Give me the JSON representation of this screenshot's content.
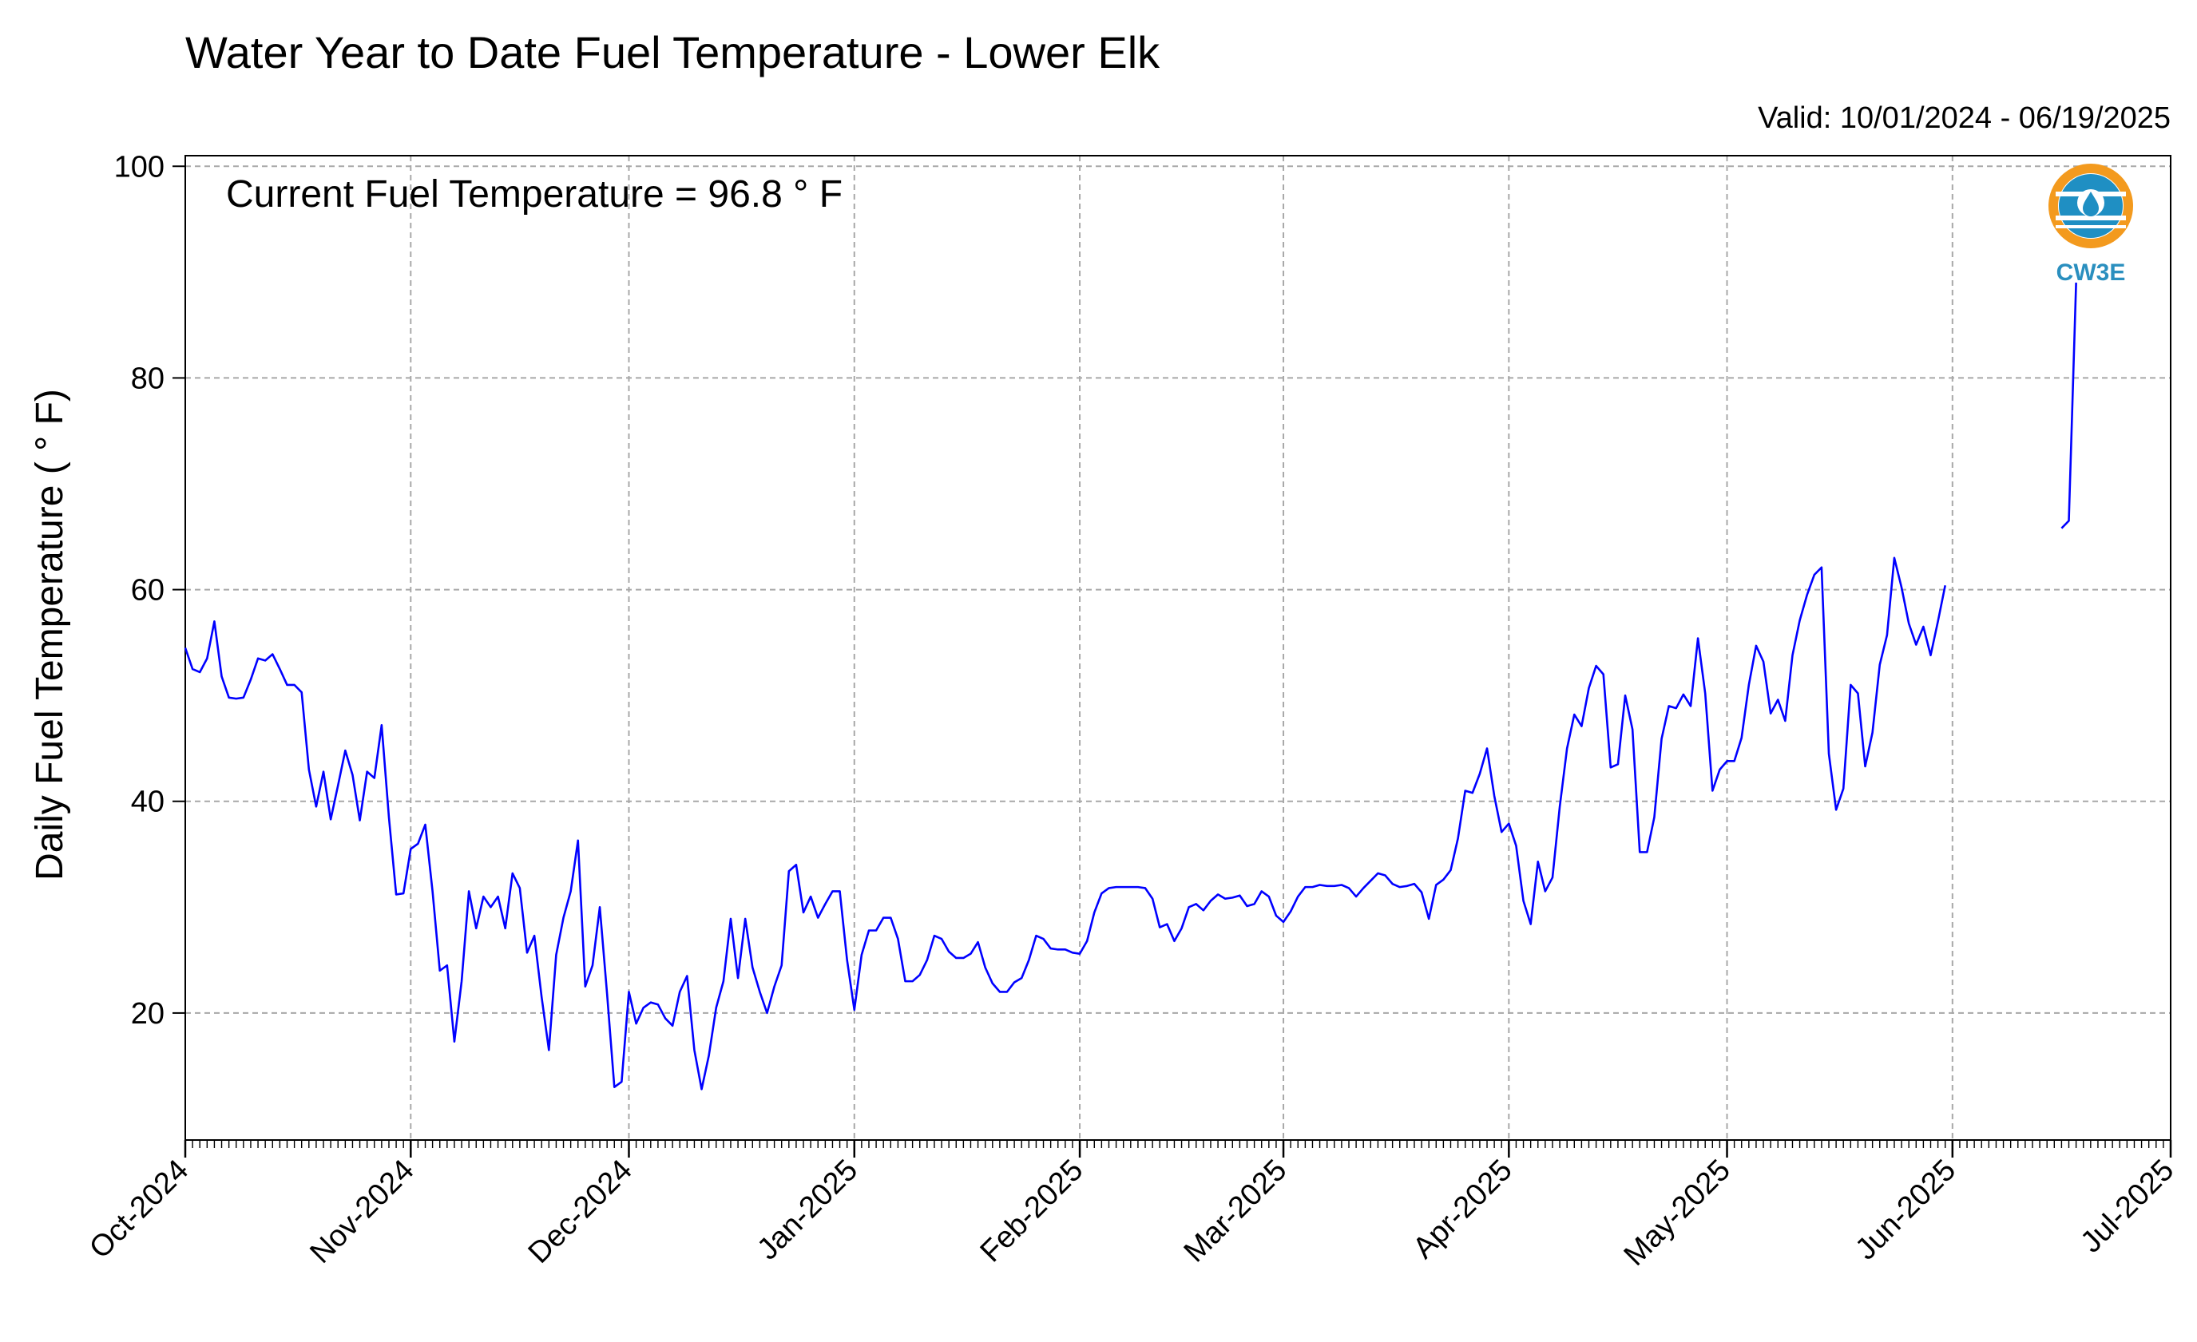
{
  "chart_data": {
    "type": "line",
    "title": "Water Year to Date Fuel Temperature - Lower Elk",
    "valid_text": "Valid: 10/01/2024 - 06/19/2025",
    "annotation": "Current Fuel Temperature = 96.8  ° F",
    "ylabel": "Daily Fuel Temperature ( ° F)",
    "xlabel": "",
    "ylim": [
      8,
      101
    ],
    "yticks": [
      20,
      40,
      60,
      80,
      100
    ],
    "ytick_labels": [
      "20",
      "40",
      "60",
      "80",
      "100"
    ],
    "xlim": [
      "2024-10-01",
      "2025-07-01"
    ],
    "xtick_labels": [
      "Oct-2024",
      "Nov-2024",
      "Dec-2024",
      "Jan-2025",
      "Feb-2025",
      "Mar-2025",
      "Apr-2025",
      "May-2025",
      "Jun-2025",
      "Jul-2025"
    ],
    "xtick_dates": [
      "2024-10-01",
      "2024-11-01",
      "2024-12-01",
      "2025-01-01",
      "2025-02-01",
      "2025-03-01",
      "2025-04-01",
      "2025-05-01",
      "2025-06-01",
      "2025-07-01"
    ],
    "grid": true,
    "line_color": "#0000ff",
    "series": [
      {
        "x_start": "2024-10-01",
        "values": [
          54.5,
          52.5,
          52.2,
          53.5,
          57.0,
          51.8,
          49.8,
          49.7,
          49.8,
          51.5,
          53.5,
          53.3,
          53.9,
          52.5,
          51.0,
          51.0,
          50.3,
          43.0,
          39.5,
          42.8,
          38.3,
          41.5,
          44.8,
          42.5,
          38.2,
          42.8,
          42.2,
          47.2,
          38.5,
          31.2,
          31.3,
          35.5,
          36.0,
          37.8,
          31.5,
          24.0,
          24.5,
          17.3,
          23.0,
          31.5,
          28.0,
          31.0,
          30.0,
          31.0,
          28.0,
          33.2,
          31.8,
          25.7,
          27.3,
          21.5,
          16.5,
          25.5,
          29.0,
          31.5,
          36.3,
          22.5,
          24.5,
          30.0,
          21.8,
          13.0,
          13.5,
          22.0,
          19.0,
          20.5,
          21.0,
          20.8,
          19.5,
          18.8,
          22.0,
          23.5,
          16.5,
          12.8,
          16.0,
          20.5,
          23.0,
          28.9,
          23.3,
          28.9,
          24.3,
          22.0,
          20.0,
          22.5,
          24.5,
          33.4,
          34.0,
          29.5,
          31.0,
          29.0,
          30.3,
          31.5,
          31.5,
          25.0,
          20.3,
          25.5,
          27.8,
          27.8,
          29.0,
          29.0,
          27.0,
          23.0,
          23.0,
          23.6,
          25.0,
          27.3,
          27.0,
          25.8,
          25.2,
          25.2,
          25.6,
          26.7,
          24.3,
          22.8,
          22.0,
          22.0,
          22.9,
          23.3,
          25.0,
          27.3,
          27.0,
          26.1,
          26.0,
          26.0,
          25.7,
          25.6,
          26.8,
          29.5,
          31.3,
          31.8,
          31.9,
          31.9,
          31.9,
          31.9,
          31.8,
          30.8,
          28.1,
          28.4,
          26.8,
          28.0,
          30.0,
          30.3,
          29.7,
          30.6,
          31.2,
          30.8,
          30.9,
          31.1,
          30.1,
          30.3,
          31.5,
          31.0,
          29.2,
          28.6,
          29.6,
          31.0,
          31.9,
          31.9,
          32.1,
          32.0,
          32.0,
          32.1,
          31.8,
          31.0,
          31.8,
          32.5,
          33.2,
          33.0,
          32.2,
          31.9,
          32.0,
          32.2,
          31.4,
          28.9,
          32.1,
          32.6,
          33.5,
          36.5,
          41.0,
          40.8,
          42.6,
          45.0,
          40.5,
          37.1,
          37.9,
          35.8,
          30.6,
          28.4,
          34.3,
          31.5,
          32.8,
          39.5,
          45.0,
          48.2,
          47.1,
          50.7,
          52.8,
          52.0,
          43.2,
          43.5,
          50.0,
          46.8,
          35.2,
          35.2,
          38.5,
          45.9,
          49.0,
          48.8,
          50.1,
          49.0,
          55.4,
          50.2,
          41.0,
          43.0,
          43.8,
          43.8,
          46.0,
          51.0,
          54.7,
          53.2,
          48.3,
          49.6,
          47.6,
          53.8,
          57.1,
          59.5,
          61.4,
          62.1,
          44.5,
          39.2,
          41.2,
          51.0,
          50.2,
          43.3,
          46.5,
          52.9,
          55.7,
          63.0,
          60.2,
          56.8,
          54.8,
          56.5,
          53.8,
          57.0,
          60.4
        ],
        "gap_after": "2025-05-31"
      },
      {
        "x": [
          "2025-06-16",
          "2025-06-17",
          "2025-06-18"
        ],
        "values": [
          65.8,
          66.5,
          89.0
        ]
      }
    ]
  },
  "logo": {
    "text": "CW3E",
    "ring_color": "#f39a1e",
    "water_color": "#1f8fc3"
  }
}
